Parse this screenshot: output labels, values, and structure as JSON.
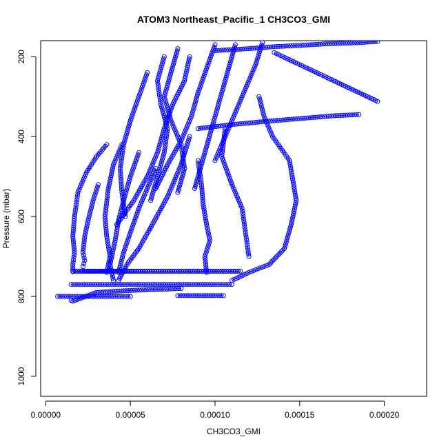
{
  "chart_data": {
    "type": "scatter",
    "title": "ATOM3 Northeast_Pacific_1 CH3CO3_GMI",
    "xlabel": "CH3CO3_GMI",
    "ylabel": "Pressure (mbar)",
    "xlim": [
      -3e-06,
      0.000225
    ],
    "ylim": [
      1050,
      160
    ],
    "y_reversed": true,
    "grid": false,
    "legend": "none",
    "marker": "open-circle",
    "color": "#0000ff",
    "x_ticks": [
      0.0,
      5e-05,
      0.0001,
      0.00015,
      0.0002
    ],
    "x_tick_labels": [
      "0.00000",
      "0.00005",
      "0.00010",
      "0.00015",
      "0.00020"
    ],
    "y_ticks": [
      200,
      400,
      600,
      800,
      1000
    ],
    "y_tick_labels": [
      "200",
      "400",
      "600",
      "800",
      "1000"
    ],
    "series": [
      {
        "x": [
          3.6e-05,
          3e-05,
          2.4e-05,
          1.9e-05,
          1.7e-05,
          1.6e-05,
          1.7e-05,
          1.6e-05,
          1.6e-05
        ],
        "y": [
          420,
          450,
          490,
          540,
          600,
          650,
          690,
          720,
          738
        ]
      },
      {
        "x": [
          3.1e-05,
          2.8e-05,
          2.5e-05,
          2.3e-05,
          2.2e-05,
          2.3e-05,
          2.2e-05
        ],
        "y": [
          520,
          560,
          610,
          650,
          690,
          710,
          725
        ]
      },
      {
        "x": [
          4.5e-05,
          4e-05,
          3.7e-05,
          3.5e-05,
          3.6e-05,
          3.8e-05,
          3.6e-05
        ],
        "y": [
          420,
          470,
          530,
          600,
          650,
          700,
          740
        ]
      },
      {
        "x": [
          5.5e-05,
          5e-05,
          4.6e-05,
          4.3e-05,
          4.1e-05,
          3.8e-05,
          4e-05
        ],
        "y": [
          440,
          500,
          560,
          610,
          660,
          720,
          760
        ]
      },
      {
        "x": [
          6.5e-05,
          6e-05,
          5.5e-05,
          5e-05,
          4.6e-05,
          4.3e-05
        ],
        "y": [
          480,
          530,
          580,
          640,
          690,
          740
        ]
      },
      {
        "x": [
          8.5e-05,
          8e-05,
          7.2e-05,
          6.3e-05,
          5.5e-05,
          4.8e-05,
          4.3e-05
        ],
        "y": [
          400,
          470,
          550,
          620,
          680,
          720,
          760
        ]
      },
      {
        "x": [
          9e-05,
          9.2e-05,
          9.3e-05,
          9.5e-05,
          9.7e-05,
          9.4e-05,
          9.5e-05
        ],
        "y": [
          460,
          520,
          570,
          620,
          660,
          700,
          740
        ]
      },
      {
        "x": [
          0.000106,
          0.000104,
          0.00011,
          0.000116,
          0.000118,
          0.00012
        ],
        "y": [
          380,
          450,
          520,
          580,
          640,
          700
        ]
      },
      {
        "x": [
          0.000126,
          0.000129,
          0.000134,
          0.000139,
          0.000144,
          0.000146,
          0.000148,
          0.000145,
          0.000141,
          0.000132,
          0.00012,
          0.00011
        ],
        "y": [
          300,
          350,
          400,
          430,
          460,
          510,
          560,
          620,
          680,
          720,
          740,
          760
        ]
      },
      {
        "x": [
          8.5e-05,
          8.2e-05,
          7.5e-05,
          7e-05,
          6.6e-05,
          6e-05,
          5.2e-05,
          4.2e-05
        ],
        "y": [
          200,
          260,
          320,
          380,
          440,
          500,
          560,
          620
        ]
      },
      {
        "x": [
          0.0001,
          9.5e-05,
          9e-05,
          8.6e-05,
          8e-05,
          7.2e-05,
          6.5e-05
        ],
        "y": [
          170,
          230,
          290,
          350,
          410,
          470,
          530
        ]
      },
      {
        "x": [
          0.000112,
          0.000108,
          0.000104,
          0.0001,
          9.6e-05,
          9.2e-05,
          8.8e-05
        ],
        "y": [
          170,
          230,
          290,
          350,
          410,
          470,
          530
        ]
      },
      {
        "x": [
          0.000128,
          0.000124,
          0.000118,
          0.000112,
          0.000106,
          0.0001
        ],
        "y": [
          165,
          220,
          280,
          340,
          400,
          460
        ]
      },
      {
        "x": [
          6e-05,
          5.5e-05,
          5e-05,
          4.6e-05,
          4.4e-05,
          4.5e-05,
          4.7e-05
        ],
        "y": [
          240,
          300,
          360,
          420,
          480,
          540,
          600
        ]
      },
      {
        "x": [
          7e-05,
          6.6e-05,
          6.8e-05,
          7.2e-05,
          7e-05,
          6.6e-05,
          6.2e-05
        ],
        "y": [
          200,
          260,
          320,
          380,
          440,
          500,
          560
        ]
      },
      {
        "x": [
          7.8e-05,
          7.4e-05,
          7e-05,
          7.4e-05,
          8e-05,
          8.2e-05,
          7.8e-05
        ],
        "y": [
          180,
          240,
          300,
          360,
          420,
          480,
          540
        ]
      },
      {
        "x": [
          1.6e-05,
          6e-05,
          0.0001,
          0.000115,
          0.0001,
          6e-05,
          3e-05,
          1.6e-05
        ],
        "y": [
          737,
          737,
          737,
          737,
          737,
          737,
          737,
          737
        ]
      },
      {
        "x": [
          1.5e-05,
          3e-05,
          4.5e-05,
          6e-05,
          8e-05,
          0.0001,
          0.00011
        ],
        "y": [
          770,
          770,
          770,
          770,
          770,
          770,
          770
        ]
      },
      {
        "x": [
          7e-06,
          1.5e-05,
          2.5e-05,
          4e-05,
          5e-05
        ],
        "y": [
          800,
          800,
          800,
          800,
          800
        ]
      },
      {
        "x": [
          7.8e-05,
          9e-05,
          0.000105
        ],
        "y": [
          798,
          798,
          798
        ]
      },
      {
        "x": [
          1.5e-05,
          1.6e-05,
          3e-05,
          5e-05,
          7e-05,
          8e-05
        ],
        "y": [
          810,
          812,
          790,
          785,
          782,
          780
        ]
      },
      {
        "x": [
          0.0001,
          0.00012,
          0.000135,
          0.00015,
          0.000165,
          0.000185,
          0.000196
        ],
        "y": [
          185,
          180,
          175,
          172,
          168,
          165,
          162
        ]
      },
      {
        "x": [
          9e-05,
          0.00011,
          0.00013,
          0.00015,
          0.00017,
          0.000185
        ],
        "y": [
          380,
          370,
          362,
          355,
          348,
          345
        ]
      },
      {
        "x": [
          0.000196,
          0.00017,
          0.00015,
          0.000135
        ],
        "y": [
          312,
          260,
          220,
          190
        ]
      }
    ]
  }
}
